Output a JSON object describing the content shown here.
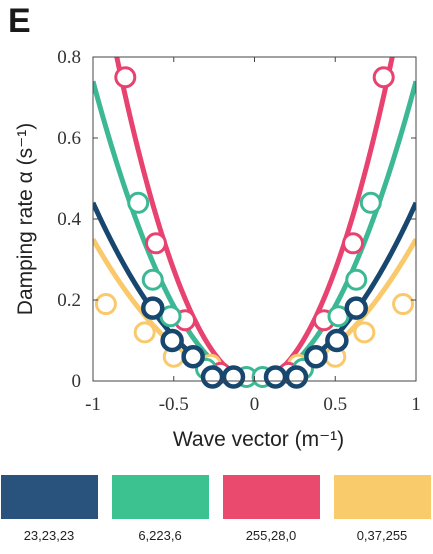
{
  "panel_label": "E",
  "chart_data": {
    "type": "scatter",
    "xlabel": "Wave vector",
    "xlabel_unit": "(m⁻¹)",
    "ylabel": "Damping rate α",
    "ylabel_unit": "(s⁻¹)",
    "xlim": [
      -1,
      1
    ],
    "ylim": [
      0,
      0.8
    ],
    "x_ticks": [
      -1,
      -0.5,
      0,
      0.5,
      1
    ],
    "x_tick_labels": [
      "-1",
      "-0.5",
      "0",
      "0.5",
      "1"
    ],
    "y_ticks": [
      0,
      0.2,
      0.4,
      0.6,
      0.8
    ],
    "y_tick_labels": [
      "0",
      "0.2",
      "0.4",
      "0.6",
      "0.8"
    ],
    "grid": false,
    "series": [
      {
        "color": "#F9C96C",
        "fit_coef": 0.35,
        "x": [
          -0.92,
          -0.68,
          -0.5,
          -0.27,
          0.27,
          0.5,
          0.68,
          0.92
        ],
        "y": [
          0.19,
          0.12,
          0.06,
          0.04,
          0.04,
          0.06,
          0.12,
          0.19
        ]
      },
      {
        "color": "#E84270",
        "fit_coef": 1.1,
        "x": [
          -0.8,
          -0.61,
          -0.43,
          -0.21,
          0.21,
          0.43,
          0.61,
          0.8
        ],
        "y": [
          0.75,
          0.34,
          0.15,
          0.02,
          0.02,
          0.15,
          0.34,
          0.75
        ]
      },
      {
        "color": "#3DB894",
        "fit_coef": 0.74,
        "x": [
          -0.72,
          -0.63,
          -0.52,
          -0.3,
          -0.05,
          0.05,
          0.3,
          0.52,
          0.63,
          0.72
        ],
        "y": [
          0.44,
          0.25,
          0.16,
          0.03,
          0.01,
          0.01,
          0.03,
          0.16,
          0.25,
          0.44
        ]
      },
      {
        "color": "#17466E",
        "fit_coef": 0.44,
        "x": [
          -0.63,
          -0.51,
          -0.38,
          -0.26,
          -0.13,
          0.13,
          0.26,
          0.38,
          0.51,
          0.63
        ],
        "y": [
          0.18,
          0.1,
          0.06,
          0.01,
          0.01,
          0.01,
          0.01,
          0.06,
          0.1,
          0.18
        ]
      }
    ]
  },
  "swatches": [
    {
      "color": "#29527C",
      "label": "23,23,23"
    },
    {
      "color": "#3CC191",
      "label": "6,223,6"
    },
    {
      "color": "#EA4A6E",
      "label": "255,28,0"
    },
    {
      "color": "#F9CB6A",
      "label": "0,37,255"
    }
  ]
}
